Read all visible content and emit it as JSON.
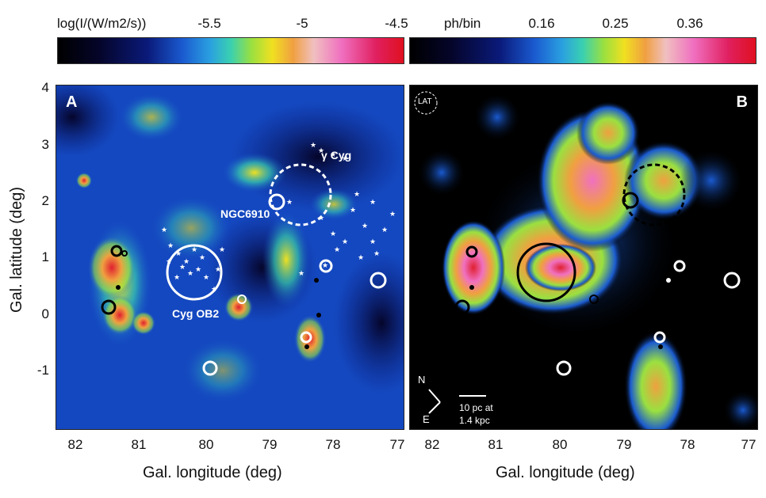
{
  "colorbar_left": {
    "title": "log(I/(W/m2/s))",
    "ticks": [
      "-5.5",
      "-5",
      "-4.5"
    ]
  },
  "colorbar_right": {
    "title": "ph/bin",
    "ticks": [
      "0.16",
      "0.25",
      "0.36"
    ]
  },
  "panel_a": {
    "letter": "A",
    "labels": {
      "gamma_cyg": "γ Cyg",
      "ngc6910": "NGC6910",
      "cyg_ob2": "Cyg OB2"
    }
  },
  "panel_b": {
    "letter": "B",
    "lat_label": "LAT",
    "compass_n": "N",
    "compass_e": "E",
    "scalebar_line1": "10 pc at",
    "scalebar_line2": "1.4 kpc"
  },
  "axes": {
    "xlabel": "Gal. longitude (deg)",
    "ylabel": "Gal. latitude (deg)",
    "x_ticks": [
      "82",
      "81",
      "80",
      "79",
      "78",
      "77"
    ],
    "y_ticks": [
      "4",
      "3",
      "2",
      "1",
      "0",
      "-1"
    ]
  }
}
